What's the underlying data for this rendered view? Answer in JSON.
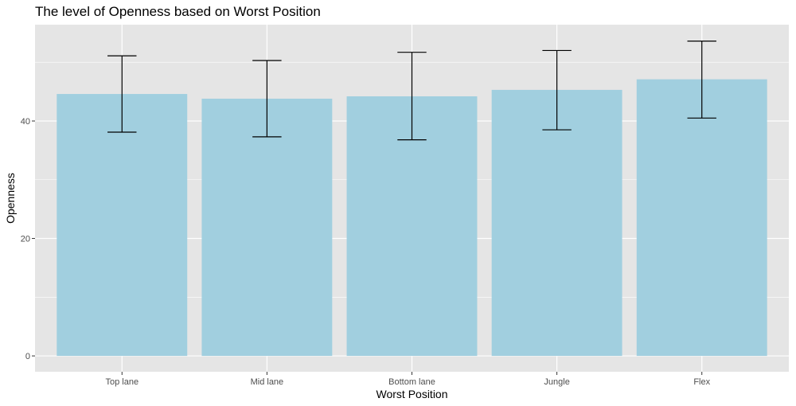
{
  "chart_data": {
    "type": "bar",
    "title": "The level of Openness based on Worst Position",
    "xlabel": "Worst Position",
    "ylabel": "Openness",
    "categories": [
      "Top lane",
      "Mid lane",
      "Bottom lane",
      "Jungle",
      "Flex"
    ],
    "values": [
      44.6,
      43.8,
      44.2,
      45.3,
      47.1
    ],
    "error_bars": {
      "lower": [
        38.1,
        37.3,
        36.8,
        38.5,
        40.5
      ],
      "upper": [
        51.1,
        50.3,
        51.7,
        52.0,
        53.6
      ]
    },
    "yticks": [
      0,
      20,
      40
    ],
    "ylim": [
      -2.7,
      56.4
    ],
    "grid": true,
    "colors": {
      "bar": "#a1cfdf",
      "panel": "#e5e5e5",
      "grid": "#ffffff",
      "errorbar": "#000000"
    }
  }
}
